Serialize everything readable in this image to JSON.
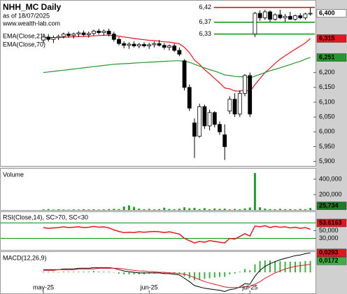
{
  "chart_data": [
    {
      "type": "candlestick",
      "title": "NHH_MC Daily",
      "subtitle": "as of 18/07/2025",
      "source": "www.wealth-lab.com",
      "open": [
        6310,
        6320,
        6312,
        6318,
        6322,
        6330,
        6325,
        6330,
        6334,
        6328,
        6332,
        6340,
        6335,
        6340,
        6330,
        6312,
        6298,
        6292,
        6296,
        6290,
        6295,
        6290,
        6294,
        6298,
        6292,
        6285,
        6290,
        6275,
        6240,
        6150,
        6030,
        5985,
        6085,
        6020,
        6065,
        6025,
        5990,
        6070,
        6110,
        6060,
        6130,
        6190,
        6330,
        6400,
        6385,
        6405,
        6380,
        6395,
        6385,
        6390,
        6380,
        6392,
        6385,
        6398
      ],
      "high": [
        6330,
        6330,
        6325,
        6328,
        6335,
        6338,
        6335,
        6340,
        6342,
        6338,
        6345,
        6348,
        6345,
        6348,
        6338,
        6320,
        6305,
        6302,
        6305,
        6300,
        6302,
        6300,
        6305,
        6310,
        6300,
        6295,
        6298,
        6285,
        6245,
        6160,
        6045,
        6095,
        6092,
        6075,
        6070,
        6035,
        6025,
        6120,
        6130,
        6140,
        6195,
        6200,
        6405,
        6410,
        6412,
        6410,
        6400,
        6412,
        6398,
        6405,
        6396,
        6400,
        6402,
        6418
      ],
      "low": [
        6300,
        6305,
        6300,
        6310,
        6315,
        6318,
        6315,
        6320,
        6322,
        6318,
        6325,
        6328,
        6325,
        6322,
        6305,
        6292,
        6282,
        6280,
        6285,
        6282,
        6285,
        6280,
        6285,
        6288,
        6278,
        6275,
        6270,
        6255,
        6140,
        6070,
        5912,
        5980,
        6010,
        6005,
        6015,
        5990,
        5905,
        6060,
        6050,
        6050,
        6120,
        6050,
        6320,
        6375,
        6378,
        6370,
        6375,
        6380,
        6372,
        6378,
        6375,
        6380,
        6378,
        6392
      ],
      "close": [
        6320,
        6312,
        6318,
        6322,
        6330,
        6325,
        6330,
        6334,
        6328,
        6332,
        6340,
        6335,
        6340,
        6330,
        6312,
        6298,
        6292,
        6296,
        6290,
        6295,
        6290,
        6294,
        6298,
        6292,
        6285,
        6290,
        6275,
        6262,
        6150,
        6080,
        5985,
        6085,
        6020,
        6065,
        6025,
        6000,
        5950,
        6110,
        6060,
        6130,
        6190,
        6060,
        6400,
        6385,
        6405,
        6380,
        6395,
        6385,
        6390,
        6380,
        6392,
        6385,
        6398,
        6400
      ],
      "last_value_label": "6,400",
      "series": [
        {
          "name": "EMA(Close,21)",
          "color": "#e8141e",
          "last_value_label": "6,315",
          "values": [
            6318,
            6318,
            6318,
            6318,
            6319,
            6320,
            6321,
            6322,
            6322,
            6323,
            6324,
            6325,
            6326,
            6326,
            6325,
            6323,
            6320,
            6318,
            6315,
            6313,
            6311,
            6309,
            6308,
            6306,
            6304,
            6303,
            6300,
            6297,
            6285,
            6267,
            6242,
            6228,
            6210,
            6196,
            6180,
            6165,
            6148,
            6145,
            6138,
            6137,
            6142,
            6136,
            6159,
            6180,
            6200,
            6215,
            6231,
            6245,
            6257,
            6268,
            6279,
            6289,
            6300,
            6315
          ]
        },
        {
          "name": "EMA(Close,70)",
          "color": "#22992a",
          "last_value_label": "6,251",
          "values": [
            6200,
            6202,
            6204,
            6206,
            6208,
            6210,
            6212,
            6214,
            6216,
            6218,
            6220,
            6222,
            6224,
            6226,
            6228,
            6229,
            6230,
            6231,
            6232,
            6233,
            6234,
            6235,
            6236,
            6237,
            6238,
            6239,
            6240,
            6240,
            6238,
            6235,
            6228,
            6222,
            6216,
            6210,
            6205,
            6199,
            6192,
            6190,
            6187,
            6186,
            6186,
            6182,
            6188,
            6194,
            6200,
            6206,
            6211,
            6216,
            6222,
            6227,
            6233,
            6238,
            6245,
            6251
          ]
        }
      ],
      "levels": [
        {
          "value": 6420,
          "label": "6,42",
          "color": "#e00000"
        },
        {
          "value": 6370,
          "label": "6,37",
          "color": "#009a00"
        },
        {
          "value": 6330,
          "label": "6,33",
          "color": "#009a00"
        }
      ],
      "ylim": [
        5885,
        6445
      ],
      "yticks": [
        {
          "value": 5900,
          "label": "5,900"
        },
        {
          "value": 5950,
          "label": "5,950"
        },
        {
          "value": 6000,
          "label": "6,000"
        },
        {
          "value": 6050,
          "label": "6,050"
        },
        {
          "value": 6100,
          "label": "6,100"
        },
        {
          "value": 6150,
          "label": "6,150"
        },
        {
          "value": 6200,
          "label": "6,200"
        }
      ]
    },
    {
      "type": "bar",
      "title": "Volume",
      "color": "#1e9e2a",
      "last_value_label": "25,734",
      "values": [
        8000,
        12000,
        6000,
        9000,
        7000,
        5000,
        8000,
        6000,
        10000,
        7000,
        9000,
        6000,
        8000,
        11000,
        15000,
        12000,
        45000,
        60000,
        40000,
        18000,
        10000,
        15000,
        8000,
        12000,
        30000,
        14000,
        9000,
        16000,
        35000,
        22000,
        28000,
        12000,
        24000,
        10000,
        20000,
        15000,
        18000,
        9000,
        14000,
        11000,
        20000,
        32000,
        480000,
        35000,
        18000,
        12000,
        9000,
        15000,
        10000,
        12000,
        8000,
        14000,
        11000,
        25734
      ],
      "ylim": [
        0,
        545000
      ],
      "yticks": [
        {
          "value": 200000,
          "label": "200,000"
        },
        {
          "value": 400000,
          "label": "400,000"
        }
      ]
    },
    {
      "type": "line",
      "title": "RSI(Close,14), SC>70, SC<30",
      "color": "#e8141e",
      "last_value_label": "53.6163",
      "values": [
        58,
        56,
        57,
        58,
        60,
        58,
        59,
        60,
        58,
        59,
        61,
        59,
        60,
        57,
        52,
        48,
        45,
        46,
        45,
        47,
        46,
        47,
        48,
        47,
        45,
        47,
        44,
        41,
        30,
        24,
        18,
        22,
        20,
        24,
        22,
        20,
        18,
        30,
        28,
        35,
        42,
        36,
        62,
        60,
        63,
        58,
        61,
        59,
        60,
        57,
        59,
        56,
        58,
        53.6163
      ],
      "levels": [
        70,
        30
      ],
      "level_color": "#009a00",
      "ylim": [
        0,
        100
      ],
      "yticks": [
        {
          "value": 30,
          "label": "30,000"
        },
        {
          "value": 50,
          "label": "50,000"
        }
      ]
    },
    {
      "type": "macd",
      "title": "MACD(12,26,9)",
      "series": [
        {
          "kind": "histogram",
          "color": "#3cb043",
          "last_value_label": "0,0172",
          "values": [
            0.001,
            0.001,
            0.001,
            0,
            0.001,
            0.001,
            0.001,
            0.001,
            0.001,
            0.001,
            0.002,
            0.001,
            0.001,
            0.001,
            0,
            -0.002,
            -0.003,
            -0.003,
            -0.003,
            -0.003,
            -0.003,
            -0.002,
            -0.002,
            -0.001,
            -0.002,
            -0.001,
            -0.002,
            -0.002,
            -0.006,
            -0.009,
            -0.012,
            -0.011,
            -0.01,
            -0.009,
            -0.008,
            -0.007,
            -0.007,
            -0.003,
            -0.002,
            0.001,
            0.005,
            0.003,
            0.012,
            0.017,
            0.018,
            0.018,
            0.017,
            0.017,
            0.016,
            0.016,
            0.016,
            0.016,
            0.017,
            0.0172
          ]
        },
        {
          "kind": "line",
          "color": "#000000",
          "last_value_label": "0,0293",
          "values": [
            0.004,
            0.004,
            0.004,
            0.004,
            0.005,
            0.005,
            0.005,
            0.006,
            0.006,
            0.006,
            0.007,
            0.007,
            0.007,
            0.007,
            0.006,
            0.004,
            0.002,
            0.001,
            0,
            -0.001,
            -0.001,
            -0.001,
            -0.001,
            -0.001,
            -0.002,
            -0.002,
            -0.003,
            -0.004,
            -0.009,
            -0.014,
            -0.02,
            -0.022,
            -0.024,
            -0.025,
            -0.026,
            -0.027,
            -0.029,
            -0.026,
            -0.025,
            -0.022,
            -0.017,
            -0.018,
            -0.006,
            0.003,
            0.009,
            0.013,
            0.016,
            0.019,
            0.021,
            0.023,
            0.025,
            0.026,
            0.028,
            0.0293
          ]
        },
        {
          "kind": "line",
          "color": "#e8141e",
          "values": [
            0.003,
            0.003,
            0.003,
            0.004,
            0.004,
            0.004,
            0.004,
            0.005,
            0.005,
            0.005,
            0.005,
            0.006,
            0.006,
            0.006,
            0.006,
            0.006,
            0.005,
            0.004,
            0.003,
            0.002,
            0.002,
            0.001,
            0.001,
            0,
            0,
            -0.001,
            -0.001,
            -0.002,
            -0.003,
            -0.005,
            -0.008,
            -0.011,
            -0.014,
            -0.016,
            -0.018,
            -0.02,
            -0.022,
            -0.023,
            -0.023,
            -0.023,
            -0.022,
            -0.021,
            -0.018,
            -0.014,
            -0.009,
            -0.005,
            -0.001,
            0.002,
            0.005,
            0.007,
            0.009,
            0.01,
            0.011,
            0.0121
          ]
        }
      ],
      "categories": [
        "may-25",
        null,
        null,
        null,
        null,
        null,
        null,
        null,
        null,
        null,
        null,
        null,
        null,
        null,
        null,
        null,
        null,
        null,
        null,
        null,
        null,
        "jun-25",
        null,
        null,
        null,
        null,
        null,
        null,
        null,
        null,
        null,
        null,
        null,
        null,
        null,
        null,
        null,
        null,
        null,
        null,
        null,
        "jul-25",
        null,
        null,
        null,
        null,
        null,
        null,
        null,
        null,
        null,
        null,
        null,
        null
      ],
      "ylim": [
        -0.0316,
        0.0316
      ]
    }
  ]
}
